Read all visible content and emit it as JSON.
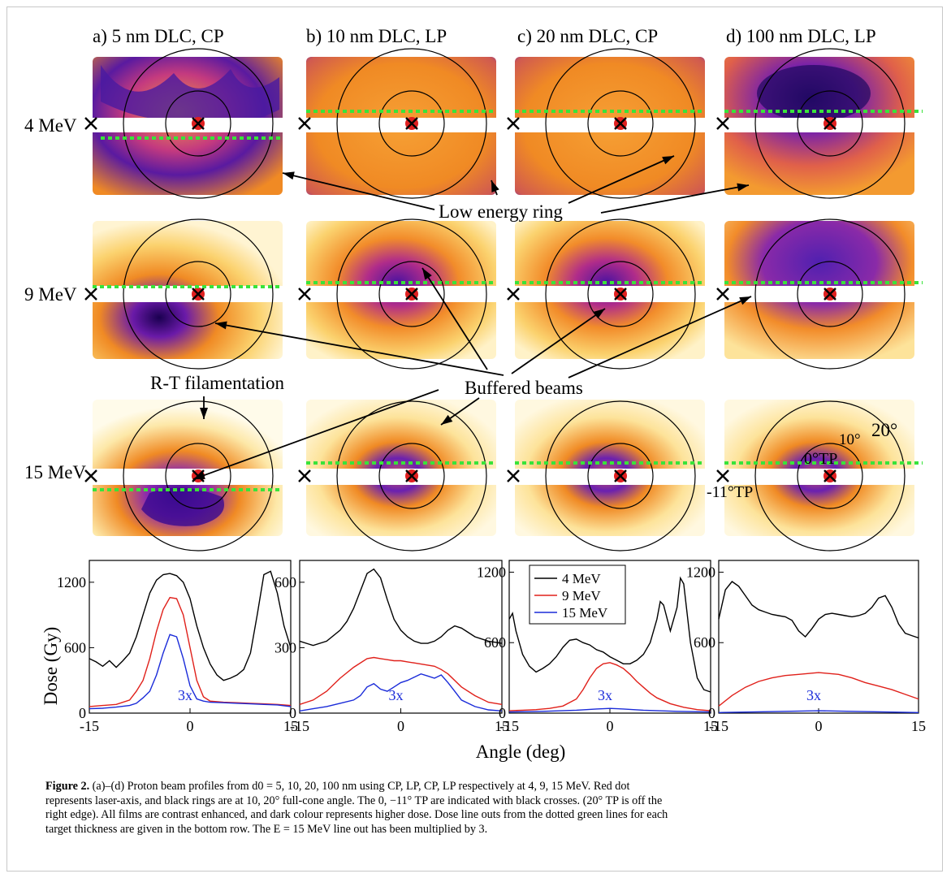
{
  "figure": {
    "column_titles": [
      "a) 5 nm DLC, CP",
      "b) 10 nm DLC, LP",
      "c) 20 nm DLC, CP",
      "d) 100 nm DLC, LP"
    ],
    "row_labels": [
      "4 MeV",
      "9 MeV",
      "15 MeV"
    ],
    "annotations": {
      "low_energy_ring": "Low energy ring",
      "buffered_beams": "Buffered beams",
      "rt_filamentation": "R-T filamentation",
      "deg10": "10°",
      "deg20": "20°",
      "tp0": "0°TP",
      "tp_minus11": "-11°TP"
    },
    "colors": {
      "film_dark": "#3b0d8f",
      "film_mid": "#c0287a",
      "film_orange": "#f08a24",
      "film_light": "#fde9a8",
      "dotted_line": "#39e33a",
      "laser_dot": "#e02020",
      "series_4MeV": "#000000",
      "series_9MeV": "#e0201a",
      "series_15MeV": "#1a2bd9"
    }
  },
  "chart_data": [
    {
      "type": "line",
      "panel": "a",
      "xlim": [
        -15,
        15
      ],
      "ylim": [
        0,
        1400
      ],
      "xticks": [
        "-15",
        "0",
        "15"
      ],
      "yticks": [
        "0",
        "600",
        "1200"
      ],
      "multiplier_label": "3x",
      "series": [
        {
          "x": [
            -15,
            -14,
            -13,
            -12,
            -11,
            -10,
            -9,
            -8,
            -7,
            -6,
            -5,
            -4,
            -3,
            -2,
            -1,
            0,
            1,
            2,
            3,
            4,
            5,
            6,
            7,
            8,
            9,
            10,
            11,
            12,
            13,
            14,
            15
          ],
          "values": [
            500,
            470,
            430,
            480,
            420,
            480,
            550,
            700,
            900,
            1100,
            1220,
            1270,
            1280,
            1260,
            1200,
            1050,
            800,
            600,
            450,
            350,
            300,
            320,
            350,
            400,
            550,
            900,
            1270,
            1300,
            1100,
            800,
            600
          ]
        },
        {
          "x": [
            -15,
            -13,
            -11,
            -9,
            -8,
            -7,
            -6,
            -5,
            -4,
            -3,
            -2,
            -1,
            0,
            1,
            2,
            3,
            5,
            7,
            9,
            11,
            13,
            15
          ],
          "values": [
            60,
            70,
            80,
            120,
            200,
            300,
            500,
            750,
            950,
            1060,
            1050,
            900,
            600,
            300,
            150,
            110,
            100,
            95,
            90,
            85,
            80,
            70
          ]
        },
        {
          "x": [
            -15,
            -13,
            -11,
            -9,
            -8,
            -7,
            -6,
            -5,
            -4,
            -3,
            -2,
            -1,
            0,
            1,
            2,
            3,
            5,
            7,
            9,
            11,
            13,
            15
          ],
          "values": [
            40,
            45,
            55,
            70,
            90,
            140,
            200,
            350,
            550,
            720,
            700,
            500,
            250,
            130,
            110,
            100,
            95,
            90,
            85,
            80,
            75,
            60
          ]
        }
      ]
    },
    {
      "type": "line",
      "panel": "b",
      "xlim": [
        -15,
        15
      ],
      "ylim": [
        0,
        700
      ],
      "xticks": [
        "-15",
        "0",
        "15"
      ],
      "yticks": [
        "0",
        "300",
        "600"
      ],
      "multiplier_label": "3x",
      "series": [
        {
          "x": [
            -15,
            -13,
            -11,
            -9,
            -8,
            -7,
            -6,
            -5,
            -4,
            -3,
            -2,
            -1,
            0,
            1,
            2,
            3,
            4,
            5,
            6,
            7,
            8,
            9,
            10,
            11,
            12,
            13,
            15
          ],
          "values": [
            330,
            310,
            330,
            380,
            420,
            480,
            560,
            640,
            660,
            620,
            520,
            430,
            380,
            350,
            330,
            320,
            320,
            330,
            350,
            380,
            400,
            390,
            370,
            350,
            340,
            330,
            320
          ]
        },
        {
          "x": [
            -15,
            -13,
            -11,
            -9,
            -7,
            -5,
            -4,
            -3,
            -2,
            -1,
            0,
            1,
            2,
            3,
            4,
            5,
            6,
            7,
            9,
            11,
            13,
            15
          ],
          "values": [
            40,
            60,
            100,
            160,
            210,
            250,
            255,
            250,
            245,
            240,
            240,
            235,
            230,
            225,
            220,
            215,
            200,
            180,
            120,
            80,
            50,
            40
          ]
        },
        {
          "x": [
            -15,
            -13,
            -11,
            -9,
            -7,
            -6,
            -5,
            -4,
            -3,
            -2,
            -1,
            0,
            1,
            2,
            3,
            4,
            5,
            6,
            7,
            8,
            9,
            11,
            13,
            15
          ],
          "values": [
            10,
            20,
            30,
            45,
            60,
            80,
            120,
            135,
            110,
            100,
            120,
            140,
            150,
            165,
            180,
            170,
            160,
            175,
            140,
            100,
            60,
            30,
            15,
            10
          ]
        }
      ]
    },
    {
      "type": "line",
      "panel": "c",
      "xlim": [
        -15,
        15
      ],
      "ylim": [
        0,
        1300
      ],
      "xticks": [
        "-15",
        "0",
        "15"
      ],
      "yticks": [
        "0",
        "600",
        "1200"
      ],
      "legend": [
        "4 MeV",
        "9 MeV",
        "15 MeV"
      ],
      "legend_position": "top-left",
      "multiplier_label": "3x",
      "series": [
        {
          "name": "4 MeV",
          "x": [
            -15,
            -14.5,
            -14,
            -13,
            -12,
            -11,
            -10,
            -9,
            -8,
            -7,
            -6,
            -5,
            -4,
            -3,
            -2,
            -1,
            0,
            1,
            2,
            3,
            4,
            5,
            6,
            7,
            7.5,
            8,
            9,
            10,
            10.5,
            11,
            12,
            13,
            14,
            15
          ],
          "values": [
            800,
            850,
            700,
            500,
            400,
            350,
            380,
            420,
            480,
            560,
            620,
            630,
            600,
            580,
            540,
            520,
            480,
            450,
            420,
            420,
            450,
            500,
            600,
            800,
            950,
            920,
            700,
            900,
            1150,
            1100,
            600,
            300,
            200,
            180
          ]
        },
        {
          "name": "9 MeV",
          "x": [
            -15,
            -13,
            -11,
            -9,
            -7,
            -5,
            -4,
            -3,
            -2,
            -1,
            0,
            1,
            2,
            3,
            4,
            5,
            6,
            7,
            9,
            11,
            13,
            15
          ],
          "values": [
            20,
            25,
            30,
            40,
            60,
            120,
            200,
            300,
            380,
            420,
            430,
            410,
            380,
            330,
            270,
            220,
            170,
            130,
            80,
            50,
            30,
            20
          ]
        },
        {
          "name": "15 MeV",
          "x": [
            -15,
            -10,
            -5,
            -2,
            0,
            2,
            5,
            10,
            15
          ],
          "values": [
            10,
            15,
            25,
            35,
            40,
            35,
            25,
            15,
            10
          ]
        }
      ]
    },
    {
      "type": "line",
      "panel": "d",
      "xlim": [
        -15,
        15
      ],
      "ylim": [
        0,
        1300
      ],
      "xticks": [
        "-15",
        "0",
        "15"
      ],
      "yticks": [
        "0",
        "600",
        "1200"
      ],
      "multiplier_label": "3x",
      "series": [
        {
          "x": [
            -15,
            -14,
            -13,
            -12,
            -11,
            -10,
            -9,
            -8,
            -7,
            -6,
            -5,
            -4,
            -3,
            -2,
            -1,
            0,
            1,
            2,
            3,
            4,
            5,
            6,
            7,
            8,
            9,
            10,
            11,
            12,
            13,
            14,
            15
          ],
          "values": [
            800,
            1050,
            1120,
            1080,
            1000,
            920,
            880,
            860,
            840,
            830,
            820,
            790,
            700,
            650,
            720,
            800,
            840,
            850,
            840,
            830,
            820,
            830,
            850,
            900,
            980,
            1000,
            900,
            760,
            680,
            660,
            640
          ]
        },
        {
          "x": [
            -15,
            -13,
            -11,
            -9,
            -7,
            -5,
            -3,
            -1,
            0,
            1,
            3,
            5,
            7,
            9,
            11,
            13,
            15
          ],
          "values": [
            60,
            150,
            220,
            270,
            300,
            320,
            330,
            340,
            345,
            340,
            330,
            300,
            260,
            230,
            200,
            160,
            120
          ]
        },
        {
          "x": [
            -15,
            -10,
            -5,
            0,
            5,
            10,
            15
          ],
          "values": [
            5,
            10,
            15,
            20,
            15,
            10,
            5
          ]
        }
      ]
    }
  ],
  "axes": {
    "ylabel": "Dose (Gy)",
    "xlabel": "Angle (deg)"
  },
  "caption": {
    "label": "Figure 2.",
    "line1": "(a)–(d) Proton beam profiles from d0 = 5, 10, 20, 100 nm using CP, LP, CP, LP respectively at 4, 9, 15 MeV. Red dot",
    "line2": "represents laser-axis, and black rings are at 10, 20° full-cone angle. The 0, −11° TP are indicated with black crosses. (20° TP is off the",
    "line3": "right edge). All films are contrast enhanced, and dark colour represents higher dose. Dose line outs from the dotted green lines for each",
    "line4": "target thickness are given in the bottom row. The E = 15 MeV line out has been multiplied by 3."
  }
}
